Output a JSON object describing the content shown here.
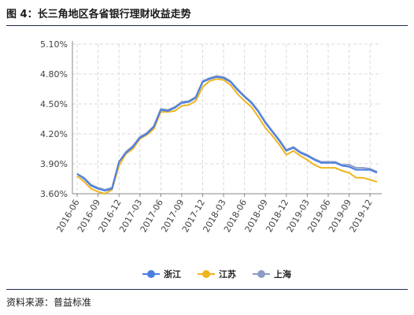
{
  "figure": {
    "title": "图 4：长三角地区各省银行理财收益走势",
    "source": "资料来源：普益标准"
  },
  "chart_data": {
    "type": "line",
    "x": [
      "2016-06",
      "2016-07",
      "2016-08",
      "2016-09",
      "2016-10",
      "2016-11",
      "2016-12",
      "2017-01",
      "2017-02",
      "2017-03",
      "2017-04",
      "2017-05",
      "2017-06",
      "2017-07",
      "2017-08",
      "2017-09",
      "2017-10",
      "2017-11",
      "2017-12",
      "2018-01",
      "2018-02",
      "2018-03",
      "2018-04",
      "2018-05",
      "2018-06",
      "2018-07",
      "2018-08",
      "2018-09",
      "2018-10",
      "2018-11",
      "2018-12",
      "2019-01",
      "2019-02",
      "2019-03",
      "2019-04",
      "2019-05",
      "2019-06",
      "2019-07",
      "2019-08",
      "2019-09",
      "2019-10",
      "2019-11",
      "2019-12",
      "2020-01"
    ],
    "xticks": [
      "2016-06",
      "2016-09",
      "2016-12",
      "2017-03",
      "2017-06",
      "2017-09",
      "2017-12",
      "2018-03",
      "2018-06",
      "2018-09",
      "2018-12",
      "2019-03",
      "2019-06",
      "2019-09",
      "2019-12"
    ],
    "yticks": [
      "3.60%",
      "3.90%",
      "4.20%",
      "4.50%",
      "4.80%",
      "5.10%"
    ],
    "ylim": [
      3.6,
      5.1
    ],
    "grid": true,
    "legend_position": "bottom",
    "series": [
      {
        "name": "浙江",
        "color": "#4a7fe0",
        "values": [
          3.8,
          3.75,
          3.68,
          3.65,
          3.63,
          3.65,
          3.92,
          4.01,
          4.07,
          4.16,
          4.2,
          4.27,
          4.44,
          4.43,
          4.46,
          4.51,
          4.52,
          4.56,
          4.72,
          4.75,
          4.77,
          4.76,
          4.72,
          4.64,
          4.57,
          4.51,
          4.42,
          4.31,
          4.22,
          4.13,
          4.03,
          4.06,
          4.01,
          3.98,
          3.94,
          3.91,
          3.91,
          3.91,
          3.88,
          3.87,
          3.84,
          3.84,
          3.84,
          3.81
        ]
      },
      {
        "name": "江苏",
        "color": "#f0b41e",
        "values": [
          3.78,
          3.72,
          3.65,
          3.62,
          3.6,
          3.64,
          3.88,
          4.0,
          4.05,
          4.15,
          4.19,
          4.25,
          4.42,
          4.42,
          4.43,
          4.48,
          4.49,
          4.53,
          4.67,
          4.73,
          4.75,
          4.74,
          4.69,
          4.6,
          4.53,
          4.47,
          4.37,
          4.26,
          4.18,
          4.09,
          3.99,
          4.03,
          3.98,
          3.94,
          3.89,
          3.86,
          3.86,
          3.86,
          3.83,
          3.81,
          3.76,
          3.76,
          3.74,
          3.72
        ]
      },
      {
        "name": "上海",
        "color": "#8c9cc4",
        "values": [
          3.8,
          3.76,
          3.69,
          3.66,
          3.64,
          3.66,
          3.92,
          4.02,
          4.08,
          4.17,
          4.21,
          4.28,
          4.45,
          4.44,
          4.47,
          4.52,
          4.53,
          4.57,
          4.73,
          4.76,
          4.78,
          4.77,
          4.73,
          4.65,
          4.58,
          4.52,
          4.43,
          4.32,
          4.23,
          4.14,
          4.04,
          4.07,
          4.02,
          3.99,
          3.95,
          3.92,
          3.92,
          3.92,
          3.89,
          3.89,
          3.86,
          3.86,
          3.85,
          3.82
        ]
      }
    ]
  }
}
